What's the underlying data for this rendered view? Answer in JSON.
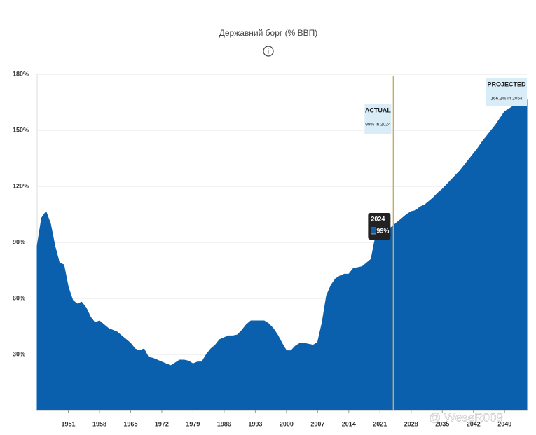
{
  "chart_data": {
    "type": "area",
    "title": "Державний борг (% ВВП)",
    "x": [
      1944,
      1945,
      1946,
      1947,
      1948,
      1949,
      1950,
      1951,
      1952,
      1953,
      1954,
      1955,
      1956,
      1957,
      1958,
      1959,
      1960,
      1961,
      1962,
      1963,
      1964,
      1965,
      1966,
      1967,
      1968,
      1969,
      1970,
      1971,
      1972,
      1973,
      1974,
      1975,
      1976,
      1977,
      1978,
      1979,
      1980,
      1981,
      1982,
      1983,
      1984,
      1985,
      1986,
      1987,
      1988,
      1989,
      1990,
      1991,
      1992,
      1993,
      1994,
      1995,
      1996,
      1997,
      1998,
      1999,
      2000,
      2001,
      2002,
      2003,
      2004,
      2005,
      2006,
      2007,
      2008,
      2009,
      2010,
      2011,
      2012,
      2013,
      2014,
      2015,
      2016,
      2017,
      2018,
      2019,
      2020,
      2021,
      2022,
      2023,
      2024,
      2025,
      2026,
      2027,
      2028,
      2029,
      2030,
      2031,
      2032,
      2033,
      2034,
      2035,
      2036,
      2037,
      2038,
      2039,
      2040,
      2041,
      2042,
      2043,
      2044,
      2045,
      2046,
      2047,
      2048,
      2049,
      2050,
      2051,
      2052,
      2053,
      2054
    ],
    "values": [
      88,
      103,
      106.5,
      100,
      88,
      79,
      78,
      66,
      59,
      57,
      58,
      55,
      50,
      47,
      48,
      46,
      44,
      43,
      42,
      40,
      38,
      36,
      33,
      32,
      33,
      28.5,
      28,
      27,
      26,
      25,
      24,
      25.5,
      27,
      27,
      26.5,
      25,
      26,
      26,
      30,
      33,
      35,
      38,
      39,
      40,
      40,
      40.5,
      43,
      46,
      48,
      48,
      48,
      48,
      46.5,
      44,
      40.5,
      36,
      32,
      32,
      34.5,
      36,
      36,
      35.5,
      35,
      36.5,
      47,
      61.5,
      67,
      70.5,
      72,
      73,
      73,
      76,
      76.5,
      77,
      79,
      81,
      93,
      96,
      95,
      97,
      99,
      101,
      103,
      105,
      106.5,
      107,
      109,
      110,
      112,
      114,
      116.5,
      118.5,
      121,
      123.5,
      126,
      128.5,
      131.5,
      134.5,
      137.5,
      140.5,
      144,
      147,
      150,
      153,
      156.5,
      160,
      161.5,
      163,
      164,
      165,
      166.2
    ],
    "color": "#0b60ae",
    "xlim": [
      1944,
      2054
    ],
    "xticks": [
      1951,
      1958,
      1965,
      1972,
      1979,
      1986,
      1993,
      2000,
      2007,
      2014,
      2021,
      2028,
      2035,
      2042,
      2049
    ],
    "ylim": [
      0,
      180
    ],
    "yticks": [
      {
        "value": 30,
        "label": "30%"
      },
      {
        "value": 60,
        "label": "60%"
      },
      {
        "value": 90,
        "label": "90%"
      },
      {
        "value": 120,
        "label": "120%"
      },
      {
        "value": 150,
        "label": "150%"
      },
      {
        "value": 180,
        "label": "180%"
      }
    ],
    "grid": true,
    "divider": 2024,
    "actual_label": {
      "title": "ACTUAL",
      "text": "99% in 2024"
    },
    "projected_label": {
      "title": "PROJECTED",
      "text": "166.2% in 2054"
    },
    "tooltip": {
      "title": "2024",
      "value": 99,
      "value_label": "99%"
    },
    "watermark": "@ WeseR009"
  }
}
